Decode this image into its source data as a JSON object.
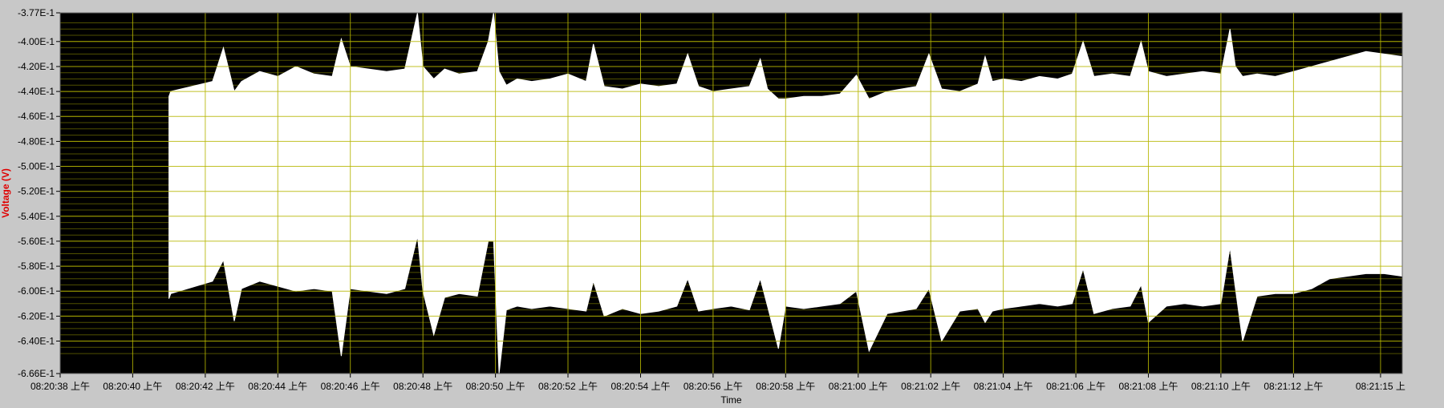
{
  "chart_data": {
    "type": "area",
    "title": "",
    "xlabel": "Time",
    "ylabel": "Voltage (V)",
    "grid": true,
    "legend": "none",
    "colors": {
      "plot_background": "#000000",
      "signal": "#ffffff",
      "major_grid": "#b5b500",
      "minor_grid": "#505000",
      "frame": "#c8c8c8",
      "axis_label": "#e00000"
    },
    "xlim": [
      0,
      37
    ],
    "ylim": [
      -0.666,
      -0.377
    ],
    "y_ticks": [
      {
        "value": -0.377,
        "label": "-3.77E-1"
      },
      {
        "value": -0.4,
        "label": "-4.00E-1"
      },
      {
        "value": -0.42,
        "label": "-4.20E-1"
      },
      {
        "value": -0.44,
        "label": "-4.40E-1"
      },
      {
        "value": -0.46,
        "label": "-4.60E-1"
      },
      {
        "value": -0.48,
        "label": "-4.80E-1"
      },
      {
        "value": -0.5,
        "label": "-5.00E-1"
      },
      {
        "value": -0.52,
        "label": "-5.20E-1"
      },
      {
        "value": -0.54,
        "label": "-5.40E-1"
      },
      {
        "value": -0.56,
        "label": "-5.60E-1"
      },
      {
        "value": -0.58,
        "label": "-5.80E-1"
      },
      {
        "value": -0.6,
        "label": "-6.00E-1"
      },
      {
        "value": -0.62,
        "label": "-6.20E-1"
      },
      {
        "value": -0.64,
        "label": "-6.40E-1"
      },
      {
        "value": -0.666,
        "label": "-6.66E-1"
      }
    ],
    "x_ticks": [
      {
        "value": 0,
        "label": "08:20:38 上午"
      },
      {
        "value": 2,
        "label": "08:20:40 上午"
      },
      {
        "value": 4,
        "label": "08:20:42 上午"
      },
      {
        "value": 6,
        "label": "08:20:44 上午"
      },
      {
        "value": 8,
        "label": "08:20:46 上午"
      },
      {
        "value": 10,
        "label": "08:20:48 上午"
      },
      {
        "value": 12,
        "label": "08:20:50 上午"
      },
      {
        "value": 14,
        "label": "08:20:52 上午"
      },
      {
        "value": 16,
        "label": "08:20:54 上午"
      },
      {
        "value": 18,
        "label": "08:20:56 上午"
      },
      {
        "value": 20,
        "label": "08:20:58 上午"
      },
      {
        "value": 22,
        "label": "08:21:00 上午"
      },
      {
        "value": 24,
        "label": "08:21:02 上午"
      },
      {
        "value": 26,
        "label": "08:21:04 上午"
      },
      {
        "value": 28,
        "label": "08:21:06 上午"
      },
      {
        "value": 30,
        "label": "08:21:08 上午"
      },
      {
        "value": 32,
        "label": "08:21:10 上午"
      },
      {
        "value": 34,
        "label": "08:21:12 上午"
      },
      {
        "value": 36.4,
        "label": "08:21:15 上"
      }
    ],
    "series": [
      {
        "kind": "envelope",
        "x": [
          3.0,
          3.05,
          4.2,
          4.5,
          4.8,
          5.0,
          5.5,
          6.0,
          6.5,
          7.0,
          7.5,
          7.75,
          8.0,
          8.5,
          9.0,
          9.5,
          9.85,
          10.0,
          10.3,
          10.6,
          11.0,
          11.5,
          11.8,
          11.95,
          12.1,
          12.3,
          12.6,
          13.0,
          13.5,
          14.0,
          14.5,
          14.7,
          15.0,
          15.5,
          16.0,
          16.5,
          17.0,
          17.3,
          17.6,
          18.0,
          18.5,
          19.0,
          19.3,
          19.5,
          19.8,
          20.0,
          20.5,
          21.0,
          21.5,
          21.95,
          22.3,
          22.8,
          23.2,
          23.6,
          23.95,
          24.3,
          24.8,
          25.3,
          25.5,
          25.7,
          26.0,
          26.5,
          27.0,
          27.5,
          27.9,
          28.2,
          28.5,
          29.0,
          29.5,
          29.8,
          30.0,
          30.5,
          31.0,
          31.5,
          32.0,
          32.25,
          32.4,
          32.6,
          33.0,
          33.5,
          34.0,
          34.5,
          35.0,
          35.5,
          36.0,
          36.5,
          37.0
        ],
        "upper": [
          -0.444,
          -0.44,
          -0.432,
          -0.405,
          -0.44,
          -0.432,
          -0.424,
          -0.428,
          -0.42,
          -0.426,
          -0.428,
          -0.398,
          -0.42,
          -0.422,
          -0.424,
          -0.422,
          -0.377,
          -0.42,
          -0.43,
          -0.422,
          -0.426,
          -0.424,
          -0.4,
          -0.377,
          -0.424,
          -0.435,
          -0.43,
          -0.432,
          -0.43,
          -0.426,
          -0.432,
          -0.402,
          -0.436,
          -0.438,
          -0.434,
          -0.436,
          -0.434,
          -0.41,
          -0.436,
          -0.44,
          -0.438,
          -0.436,
          -0.414,
          -0.438,
          -0.446,
          -0.446,
          -0.444,
          -0.444,
          -0.442,
          -0.427,
          -0.446,
          -0.44,
          -0.438,
          -0.436,
          -0.41,
          -0.438,
          -0.44,
          -0.434,
          -0.412,
          -0.432,
          -0.43,
          -0.432,
          -0.428,
          -0.43,
          -0.426,
          -0.4,
          -0.428,
          -0.426,
          -0.428,
          -0.4,
          -0.424,
          -0.428,
          -0.426,
          -0.424,
          -0.426,
          -0.39,
          -0.42,
          -0.428,
          -0.426,
          -0.428,
          -0.424,
          -0.42,
          -0.416,
          -0.412,
          -0.408,
          -0.41,
          -0.412
        ],
        "lower": [
          -0.606,
          -0.602,
          -0.592,
          -0.575,
          -0.624,
          -0.598,
          -0.592,
          -0.596,
          -0.6,
          -0.598,
          -0.6,
          -0.652,
          -0.598,
          -0.6,
          -0.602,
          -0.598,
          -0.556,
          -0.6,
          -0.635,
          -0.605,
          -0.602,
          -0.604,
          -0.56,
          -0.56,
          -0.666,
          -0.615,
          -0.612,
          -0.614,
          -0.612,
          -0.614,
          -0.616,
          -0.592,
          -0.62,
          -0.614,
          -0.618,
          -0.616,
          -0.612,
          -0.59,
          -0.616,
          -0.614,
          -0.612,
          -0.615,
          -0.59,
          -0.612,
          -0.646,
          -0.612,
          -0.614,
          -0.612,
          -0.61,
          -0.6,
          -0.648,
          -0.618,
          -0.616,
          -0.614,
          -0.598,
          -0.64,
          -0.616,
          -0.614,
          -0.625,
          -0.616,
          -0.614,
          -0.612,
          -0.61,
          -0.612,
          -0.61,
          -0.582,
          -0.618,
          -0.614,
          -0.612,
          -0.595,
          -0.625,
          -0.612,
          -0.61,
          -0.612,
          -0.61,
          -0.565,
          -0.598,
          -0.64,
          -0.604,
          -0.602,
          -0.602,
          -0.598,
          -0.59,
          -0.588,
          -0.586,
          -0.586,
          -0.588
        ]
      }
    ]
  }
}
